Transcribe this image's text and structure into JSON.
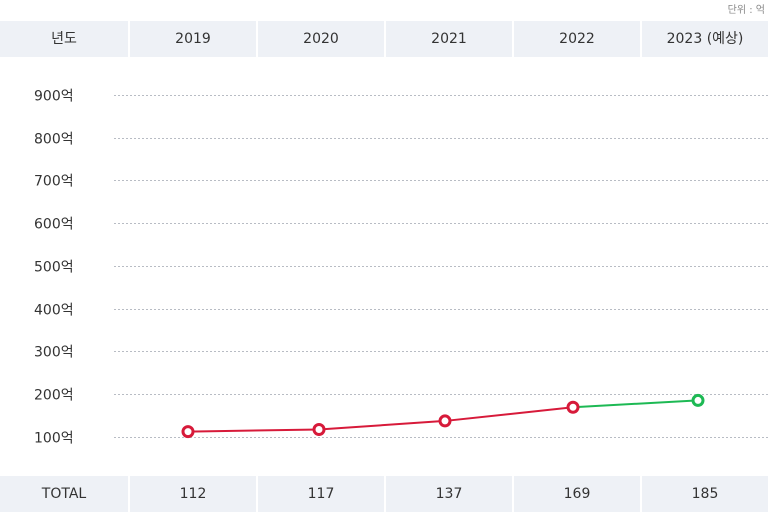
{
  "unit_label": "단위 : 억",
  "table": {
    "header_label": "년도",
    "columns": [
      "2019",
      "2020",
      "2021",
      "2022",
      "2023 (예상)"
    ],
    "footer_label": "TOTAL",
    "totals": [
      "112",
      "117",
      "137",
      "169",
      "185"
    ]
  },
  "chart_data": {
    "type": "line",
    "categories": [
      "2019",
      "2020",
      "2021",
      "2022",
      "2023 (예상)"
    ],
    "values": [
      112,
      117,
      137,
      169,
      185
    ],
    "y_ticks": [
      100,
      200,
      300,
      400,
      500,
      600,
      700,
      800,
      900
    ],
    "y_tick_suffix": "억",
    "grid": "dotted horizontal",
    "series_colors": {
      "actual": "#d71a3a",
      "forecast": "#1db954"
    }
  }
}
